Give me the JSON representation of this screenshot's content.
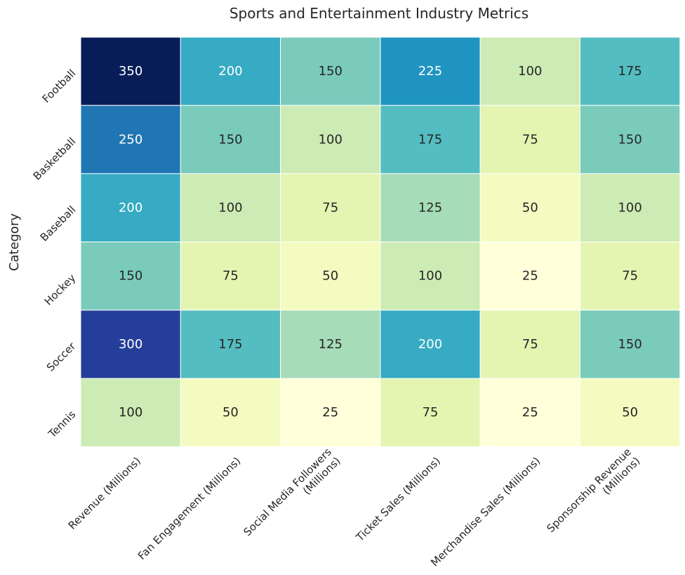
{
  "chart_data": {
    "type": "heatmap",
    "title": "Sports and Entertainment Industry Metrics",
    "xlabel": "",
    "ylabel": "Category",
    "rows": [
      "Football",
      "Basketball",
      "Baseball",
      "Hockey",
      "Soccer",
      "Tennis"
    ],
    "columns": [
      [
        "Revenue (Millions)"
      ],
      [
        "Fan Engagement (Millions)"
      ],
      [
        "Social Media Followers",
        "(Millions)"
      ],
      [
        "Ticket Sales (Millions)"
      ],
      [
        "Merchandise Sales (Millions)"
      ],
      [
        "Sponsorship Revenue",
        "(Millions)"
      ]
    ],
    "values": [
      [
        350,
        200,
        150,
        225,
        100,
        175
      ],
      [
        250,
        150,
        100,
        175,
        75,
        150
      ],
      [
        200,
        100,
        75,
        125,
        50,
        100
      ],
      [
        150,
        75,
        50,
        100,
        25,
        75
      ],
      [
        300,
        175,
        125,
        200,
        75,
        150
      ],
      [
        100,
        50,
        25,
        75,
        25,
        50
      ]
    ],
    "value_range": [
      25,
      350
    ],
    "colormap": "YlGnBu",
    "annotated": true,
    "colorbar": false,
    "cell_border_color": "#ffffff"
  }
}
